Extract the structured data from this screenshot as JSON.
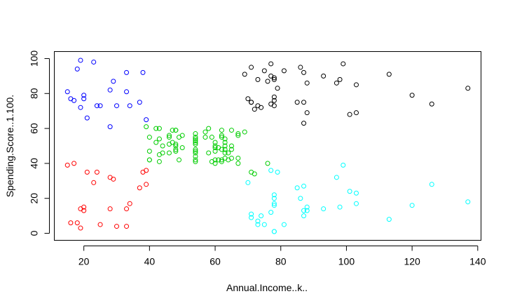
{
  "chart_data": {
    "type": "scatter",
    "title": "",
    "xlabel": "Annual.Income..k..",
    "ylabel": "Spending.Score..1.100.",
    "xlim": [
      11,
      141
    ],
    "ylim": [
      -4,
      104
    ],
    "x_ticks": [
      20,
      40,
      60,
      80,
      100,
      120,
      140
    ],
    "y_ticks": [
      0,
      20,
      40,
      60,
      80,
      100
    ],
    "x_tick_labels": [
      "20",
      "40",
      "60",
      "80",
      "100",
      "120",
      "140"
    ],
    "y_tick_labels": [
      "0",
      "20",
      "40",
      "60",
      "80",
      "100"
    ],
    "grid": false,
    "legend": "none",
    "marker": "open-circle",
    "series": [
      {
        "color": "#0000ff",
        "points": [
          [
            15,
            81
          ],
          [
            16,
            77
          ],
          [
            17,
            76
          ],
          [
            18,
            94
          ],
          [
            19,
            99
          ],
          [
            19,
            72
          ],
          [
            20,
            77
          ],
          [
            20,
            79
          ],
          [
            21,
            66
          ],
          [
            23,
            98
          ],
          [
            24,
            73
          ],
          [
            25,
            73
          ],
          [
            28,
            82
          ],
          [
            28,
            61
          ],
          [
            29,
            87
          ],
          [
            30,
            73
          ],
          [
            33,
            81
          ],
          [
            33,
            92
          ],
          [
            34,
            73
          ],
          [
            37,
            75
          ],
          [
            38,
            92
          ],
          [
            39,
            65
          ]
        ]
      },
      {
        "color": "#ff0000",
        "points": [
          [
            15,
            39
          ],
          [
            16,
            6
          ],
          [
            17,
            40
          ],
          [
            18,
            6
          ],
          [
            19,
            3
          ],
          [
            19,
            14
          ],
          [
            20,
            15
          ],
          [
            20,
            13
          ],
          [
            21,
            35
          ],
          [
            23,
            29
          ],
          [
            24,
            35
          ],
          [
            25,
            5
          ],
          [
            28,
            14
          ],
          [
            28,
            32
          ],
          [
            29,
            31
          ],
          [
            30,
            4
          ],
          [
            33,
            4
          ],
          [
            33,
            14
          ],
          [
            34,
            17
          ],
          [
            37,
            26
          ],
          [
            38,
            35
          ],
          [
            39,
            36
          ],
          [
            39,
            28
          ]
        ]
      },
      {
        "color": "#00cd00",
        "points": [
          [
            39,
            61
          ],
          [
            40,
            55
          ],
          [
            40,
            47
          ],
          [
            40,
            42
          ],
          [
            40,
            42
          ],
          [
            42,
            52
          ],
          [
            42,
            60
          ],
          [
            43,
            54
          ],
          [
            43,
            60
          ],
          [
            43,
            45
          ],
          [
            43,
            41
          ],
          [
            44,
            50
          ],
          [
            44,
            46
          ],
          [
            46,
            51
          ],
          [
            46,
            46
          ],
          [
            46,
            56
          ],
          [
            46,
            55
          ],
          [
            47,
            52
          ],
          [
            47,
            59
          ],
          [
            48,
            51
          ],
          [
            48,
            59
          ],
          [
            48,
            50
          ],
          [
            48,
            48
          ],
          [
            48,
            59
          ],
          [
            48,
            47
          ],
          [
            49,
            55
          ],
          [
            49,
            42
          ],
          [
            50,
            49
          ],
          [
            50,
            56
          ],
          [
            54,
            47
          ],
          [
            54,
            54
          ],
          [
            54,
            53
          ],
          [
            54,
            48
          ],
          [
            54,
            52
          ],
          [
            54,
            42
          ],
          [
            54,
            51
          ],
          [
            54,
            55
          ],
          [
            54,
            41
          ],
          [
            54,
            44
          ],
          [
            54,
            57
          ],
          [
            54,
            46
          ],
          [
            57,
            58
          ],
          [
            57,
            55
          ],
          [
            58,
            60
          ],
          [
            58,
            46
          ],
          [
            59,
            55
          ],
          [
            59,
            41
          ],
          [
            60,
            49
          ],
          [
            60,
            40
          ],
          [
            60,
            42
          ],
          [
            60,
            52
          ],
          [
            60,
            47
          ],
          [
            60,
            50
          ],
          [
            61,
            42
          ],
          [
            61,
            49
          ],
          [
            62,
            41
          ],
          [
            62,
            48
          ],
          [
            62,
            59
          ],
          [
            62,
            55
          ],
          [
            62,
            56
          ],
          [
            62,
            42
          ],
          [
            63,
            50
          ],
          [
            63,
            46
          ],
          [
            63,
            43
          ],
          [
            63,
            48
          ],
          [
            63,
            52
          ],
          [
            63,
            54
          ],
          [
            64,
            42
          ],
          [
            64,
            46
          ],
          [
            65,
            48
          ],
          [
            65,
            50
          ],
          [
            65,
            43
          ],
          [
            65,
            59
          ],
          [
            67,
            43
          ],
          [
            67,
            57
          ],
          [
            67,
            56
          ],
          [
            67,
            40
          ],
          [
            69,
            58
          ],
          [
            71,
            35
          ],
          [
            72,
            34
          ],
          [
            76,
            40
          ]
        ]
      },
      {
        "color": "#000000",
        "points": [
          [
            69,
            91
          ],
          [
            70,
            77
          ],
          [
            71,
            95
          ],
          [
            71,
            75
          ],
          [
            71,
            75
          ],
          [
            72,
            71
          ],
          [
            73,
            88
          ],
          [
            73,
            73
          ],
          [
            74,
            72
          ],
          [
            75,
            93
          ],
          [
            76,
            87
          ],
          [
            77,
            97
          ],
          [
            77,
            74
          ],
          [
            77,
            90
          ],
          [
            78,
            88
          ],
          [
            78,
            76
          ],
          [
            78,
            89
          ],
          [
            78,
            78
          ],
          [
            78,
            73
          ],
          [
            79,
            83
          ],
          [
            81,
            93
          ],
          [
            85,
            75
          ],
          [
            86,
            95
          ],
          [
            87,
            63
          ],
          [
            87,
            75
          ],
          [
            87,
            92
          ],
          [
            88,
            86
          ],
          [
            88,
            69
          ],
          [
            93,
            90
          ],
          [
            97,
            86
          ],
          [
            98,
            88
          ],
          [
            99,
            97
          ],
          [
            101,
            68
          ],
          [
            103,
            85
          ],
          [
            103,
            69
          ],
          [
            113,
            91
          ],
          [
            120,
            79
          ],
          [
            126,
            74
          ],
          [
            137,
            83
          ]
        ]
      },
      {
        "color": "#00ffff",
        "points": [
          [
            70,
            29
          ],
          [
            71,
            11
          ],
          [
            71,
            9
          ],
          [
            73,
            5
          ],
          [
            73,
            7
          ],
          [
            74,
            10
          ],
          [
            75,
            5
          ],
          [
            77,
            12
          ],
          [
            77,
            36
          ],
          [
            78,
            22
          ],
          [
            78,
            17
          ],
          [
            78,
            20
          ],
          [
            78,
            16
          ],
          [
            78,
            1
          ],
          [
            78,
            1
          ],
          [
            79,
            35
          ],
          [
            81,
            5
          ],
          [
            85,
            26
          ],
          [
            86,
            20
          ],
          [
            87,
            27
          ],
          [
            87,
            13
          ],
          [
            87,
            10
          ],
          [
            88,
            13
          ],
          [
            88,
            15
          ],
          [
            93,
            14
          ],
          [
            97,
            32
          ],
          [
            98,
            15
          ],
          [
            99,
            39
          ],
          [
            101,
            24
          ],
          [
            103,
            17
          ],
          [
            103,
            23
          ],
          [
            113,
            8
          ],
          [
            120,
            16
          ],
          [
            126,
            28
          ],
          [
            137,
            18
          ]
        ]
      }
    ]
  }
}
